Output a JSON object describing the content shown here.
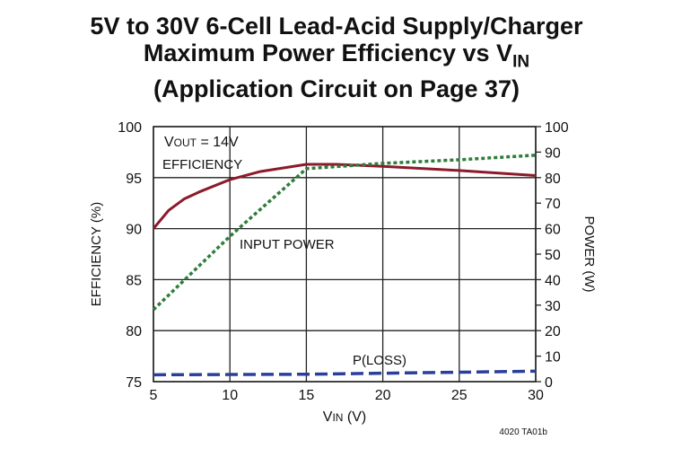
{
  "chart_data": {
    "type": "line",
    "title_lines": [
      "5V to 30V 6-Cell Lead-Acid Supply/Charger",
      "Maximum Power Efficiency vs V",
      "(Application Circuit on Page 37)"
    ],
    "title_sub": "IN",
    "xlabel": "V",
    "xlabel_sub": "IN",
    "xlabel_unit": "(V)",
    "ylabel": "EFFICIENCY (%)",
    "y2label": "POWER (W)",
    "xlim": [
      5,
      30
    ],
    "ylim": [
      75,
      100
    ],
    "y2lim": [
      0,
      100
    ],
    "xticks": [
      5,
      10,
      15,
      20,
      25,
      30
    ],
    "yticks": [
      75,
      80,
      85,
      90,
      95,
      100
    ],
    "y2ticks": [
      0,
      10,
      20,
      30,
      40,
      50,
      60,
      70,
      80,
      90,
      100
    ],
    "grid": true,
    "annotations": {
      "vout_prefix": "V",
      "vout_sub": "OUT",
      "vout_value": " = 14V",
      "efficiency": "EFFICIENCY",
      "input_power": "INPUT POWER",
      "ploss": "P(LOSS)"
    },
    "footnote": "4020 TA01b",
    "series": [
      {
        "name": "EFFICIENCY",
        "axis": "left",
        "color": "#8b1a2b",
        "style": "solid",
        "x": [
          5,
          6,
          7,
          8,
          10,
          12,
          15,
          17,
          20,
          25,
          28,
          30
        ],
        "y": [
          90,
          91.8,
          92.9,
          93.6,
          94.8,
          95.6,
          96.3,
          96.3,
          96.1,
          95.7,
          95.4,
          95.2
        ]
      },
      {
        "name": "INPUT POWER",
        "axis": "right",
        "color": "#2e7d3a",
        "style": "dotted",
        "x": [
          5,
          10,
          15,
          20,
          25,
          30
        ],
        "y": [
          28.2,
          57,
          83.5,
          85.6,
          87,
          88.8
        ]
      },
      {
        "name": "P(LOSS)",
        "axis": "right",
        "color": "#2a3f9a",
        "style": "dashed",
        "x": [
          5,
          15,
          20,
          25,
          30
        ],
        "y": [
          2.7,
          2.9,
          3.3,
          3.7,
          4.1
        ]
      }
    ]
  }
}
